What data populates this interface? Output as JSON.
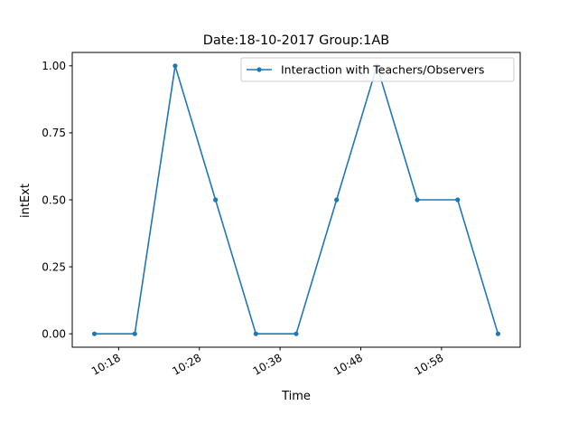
{
  "chart_data": {
    "type": "line",
    "title": "Date:18-10-2017  Group:1AB",
    "xlabel": "Time",
    "ylabel": "intExt",
    "legend_location": "upper right",
    "grid": false,
    "color": "#1f77b4",
    "x_ticks": [
      "10:18",
      "10:28",
      "10:38",
      "10:48",
      "10:58"
    ],
    "y_ticks": [
      "0.00",
      "0.25",
      "0.50",
      "0.75",
      "1.00"
    ],
    "ylim": [
      -0.05,
      1.05
    ],
    "series": [
      {
        "name": "Interaction with Teachers/Observers",
        "x": [
          "10:15",
          "10:20",
          "10:25",
          "10:30",
          "10:35",
          "10:40",
          "10:45",
          "10:50",
          "10:55",
          "11:00",
          "11:05"
        ],
        "values": [
          0.0,
          0.0,
          1.0,
          0.5,
          0.0,
          0.0,
          0.5,
          1.0,
          0.5,
          0.5,
          0.0
        ]
      }
    ]
  }
}
